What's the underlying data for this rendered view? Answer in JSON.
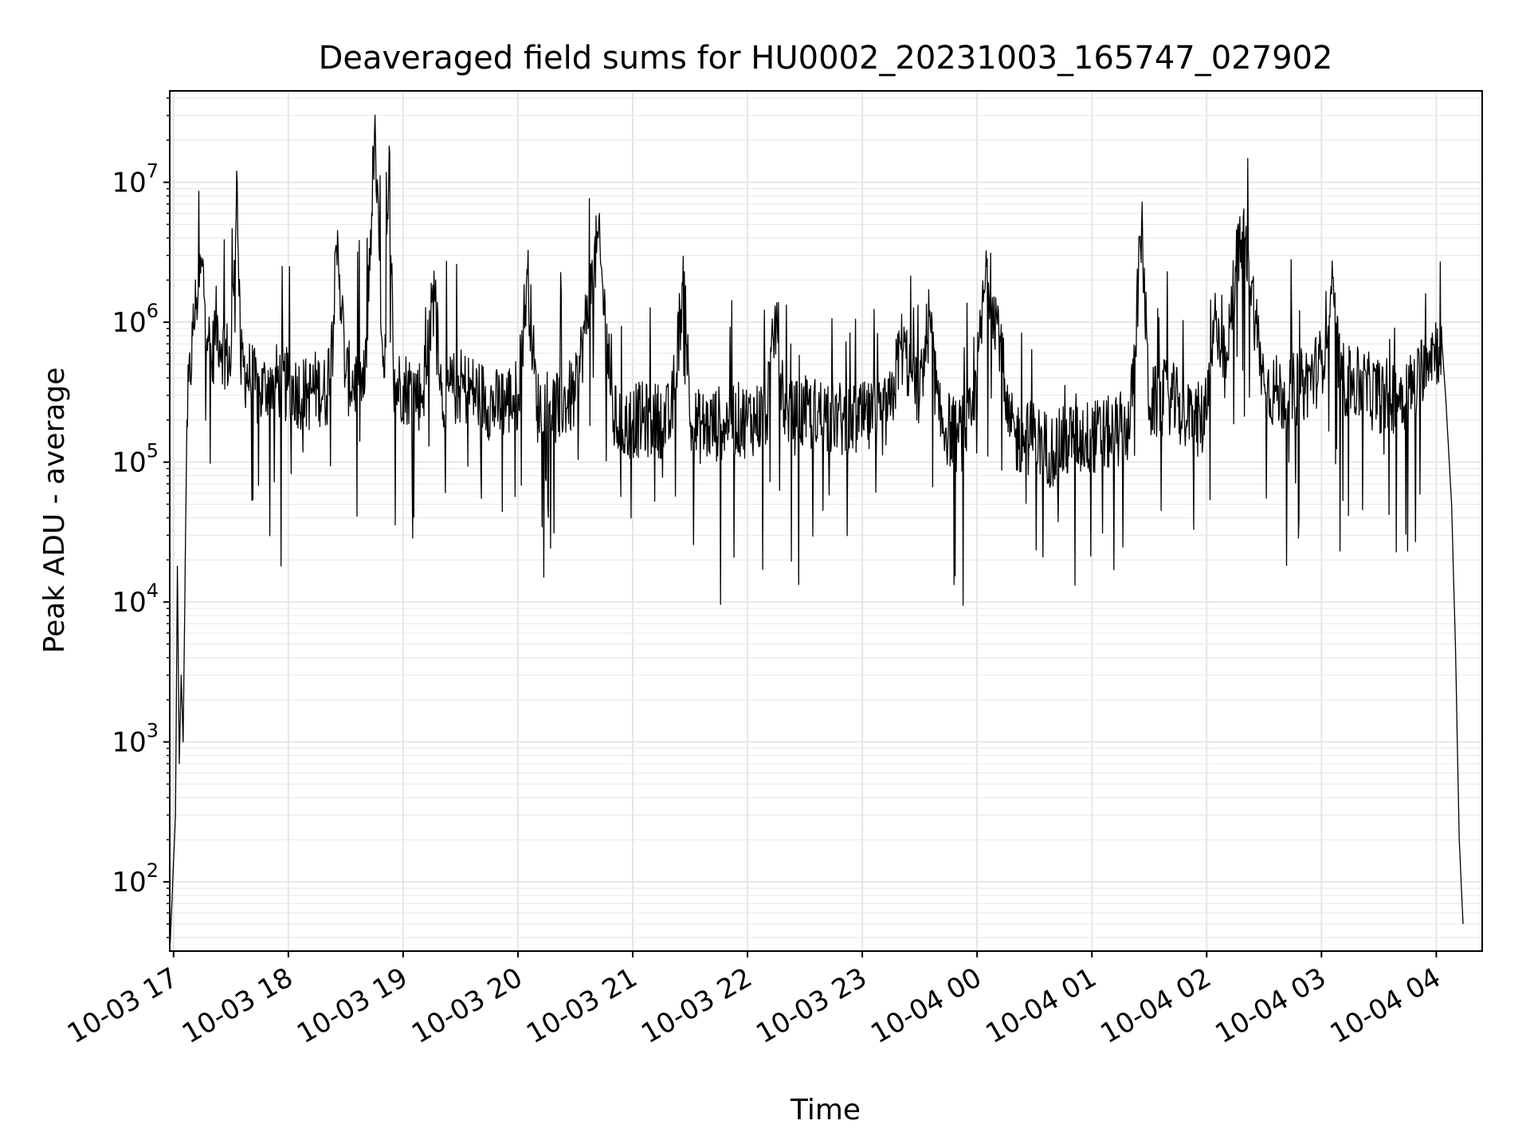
{
  "chart_data": {
    "type": "line",
    "title": "Deaveraged field sums for HU0002_20231003_165747_027902",
    "xlabel": "Time",
    "ylabel": "Peak ADU - average",
    "y_scale": "log",
    "grid": "on",
    "legend": "none",
    "line_color": "#000000",
    "grid_color": "#e6e6e6",
    "xlim": [
      "2023-10-03 16:58",
      "2023-10-04 04:24"
    ],
    "ylim": [
      32,
      45000000
    ],
    "x_ticks": [
      {
        "label": "10-03 17",
        "x": "2023-10-03 17:00"
      },
      {
        "label": "10-03 18",
        "x": "2023-10-03 18:00"
      },
      {
        "label": "10-03 19",
        "x": "2023-10-03 19:00"
      },
      {
        "label": "10-03 20",
        "x": "2023-10-03 20:00"
      },
      {
        "label": "10-03 21",
        "x": "2023-10-03 21:00"
      },
      {
        "label": "10-03 22",
        "x": "2023-10-03 22:00"
      },
      {
        "label": "10-03 23",
        "x": "2023-10-03 23:00"
      },
      {
        "label": "10-04 00",
        "x": "2023-10-04 00:00"
      },
      {
        "label": "10-04 01",
        "x": "2023-10-04 01:00"
      },
      {
        "label": "10-04 02",
        "x": "2023-10-04 02:00"
      },
      {
        "label": "10-04 03",
        "x": "2023-10-04 03:00"
      },
      {
        "label": "10-04 04",
        "x": "2023-10-04 04:00"
      }
    ],
    "y_ticks": [
      {
        "base": "10",
        "exp": "2",
        "value": 100
      },
      {
        "base": "10",
        "exp": "3",
        "value": 1000
      },
      {
        "base": "10",
        "exp": "4",
        "value": 10000
      },
      {
        "base": "10",
        "exp": "5",
        "value": 100000
      },
      {
        "base": "10",
        "exp": "6",
        "value": 1000000
      },
      {
        "base": "10",
        "exp": "7",
        "value": 10000000
      }
    ],
    "series": [
      {
        "x": [
          "2023-10-03 16:58",
          "2023-10-03 17:01",
          "2023-10-03 17:02",
          "2023-10-03 17:03",
          "2023-10-03 17:04",
          "2023-10-03 17:05",
          "2023-10-03 17:07",
          "2023-10-03 17:10",
          "2023-10-03 17:12",
          "2023-10-03 17:15",
          "2023-10-03 17:18",
          "2023-10-03 17:20",
          "2023-10-03 17:22",
          "2023-10-03 17:25",
          "2023-10-03 17:30",
          "2023-10-03 17:33",
          "2023-10-03 17:35",
          "2023-10-03 17:40",
          "2023-10-03 17:45",
          "2023-10-03 17:48",
          "2023-10-03 17:50",
          "2023-10-03 18:00",
          "2023-10-03 18:10",
          "2023-10-03 18:15",
          "2023-10-03 18:20",
          "2023-10-03 18:26",
          "2023-10-03 18:30",
          "2023-10-03 18:40",
          "2023-10-03 18:45",
          "2023-10-03 18:50",
          "2023-10-03 18:53",
          "2023-10-03 18:55",
          "2023-10-03 19:00",
          "2023-10-03 19:10",
          "2023-10-03 19:17",
          "2023-10-03 19:20",
          "2023-10-03 19:30",
          "2023-10-03 19:40",
          "2023-10-03 19:48",
          "2023-10-03 20:00",
          "2023-10-03 20:05",
          "2023-10-03 20:10",
          "2023-10-03 20:20",
          "2023-10-03 20:30",
          "2023-10-03 20:42",
          "2023-10-03 20:50",
          "2023-10-03 20:57",
          "2023-10-03 21:00",
          "2023-10-03 21:10",
          "2023-10-03 21:20",
          "2023-10-03 21:27",
          "2023-10-03 21:30",
          "2023-10-03 21:40",
          "2023-10-03 21:50",
          "2023-10-03 22:00",
          "2023-10-03 22:10",
          "2023-10-03 22:15",
          "2023-10-03 22:20",
          "2023-10-03 22:30",
          "2023-10-03 22:40",
          "2023-10-03 22:50",
          "2023-10-03 23:00",
          "2023-10-03 23:10",
          "2023-10-03 23:15",
          "2023-10-03 23:20",
          "2023-10-03 23:30",
          "2023-10-03 23:35",
          "2023-10-03 23:40",
          "2023-10-03 23:50",
          "2023-10-03 23:58",
          "2023-10-04 00:05",
          "2023-10-04 00:08",
          "2023-10-04 00:12",
          "2023-10-04 00:15",
          "2023-10-04 00:20",
          "2023-10-04 00:30",
          "2023-10-04 00:35",
          "2023-10-04 00:40",
          "2023-10-04 00:50",
          "2023-10-04 01:00",
          "2023-10-04 01:10",
          "2023-10-04 01:20",
          "2023-10-04 01:26",
          "2023-10-04 01:30",
          "2023-10-04 01:40",
          "2023-10-04 01:45",
          "2023-10-04 01:50",
          "2023-10-04 02:00",
          "2023-10-04 02:05",
          "2023-10-04 02:10",
          "2023-10-04 02:15",
          "2023-10-04 02:20",
          "2023-10-04 02:30",
          "2023-10-04 02:40",
          "2023-10-04 02:50",
          "2023-10-04 03:00",
          "2023-10-04 03:05",
          "2023-10-04 03:10",
          "2023-10-04 03:20",
          "2023-10-04 03:30",
          "2023-10-04 03:40",
          "2023-10-04 03:50",
          "2023-10-04 03:55",
          "2023-10-04 04:00",
          "2023-10-04 04:03",
          "2023-10-04 04:05",
          "2023-10-04 04:08",
          "2023-10-04 04:10",
          "2023-10-04 04:12",
          "2023-10-04 04:14"
        ],
        "y": [
          30,
          300,
          18000,
          700,
          3000,
          1000,
          200000,
          800000,
          1500000,
          2500000,
          800000,
          500000,
          1000000,
          700000,
          500000,
          12000000,
          500000,
          400000,
          300000,
          350000,
          400000,
          350000,
          300000,
          350000,
          300000,
          3500000,
          400000,
          350000,
          22000000,
          400000,
          16000000,
          350000,
          350000,
          300000,
          2000000,
          300000,
          350000,
          300000,
          250000,
          300000,
          2200000,
          250000,
          250000,
          300000,
          4000000,
          200000,
          180000,
          200000,
          200000,
          200000,
          2300000,
          180000,
          180000,
          200000,
          200000,
          220000,
          1100000,
          200000,
          220000,
          220000,
          200000,
          200000,
          200000,
          250000,
          700000,
          300000,
          1100000,
          200000,
          150000,
          200000,
          2500000,
          1500000,
          800000,
          200000,
          150000,
          150000,
          130000,
          120000,
          150000,
          150000,
          160000,
          180000,
          5000000,
          250000,
          300000,
          250000,
          200000,
          200000,
          1200000,
          400000,
          2500000,
          4000000,
          350000,
          300000,
          350000,
          500000,
          1800000,
          400000,
          350000,
          300000,
          300000,
          350000,
          650000,
          650000,
          700000,
          280000,
          50000,
          5000,
          200,
          50
        ]
      }
    ]
  }
}
